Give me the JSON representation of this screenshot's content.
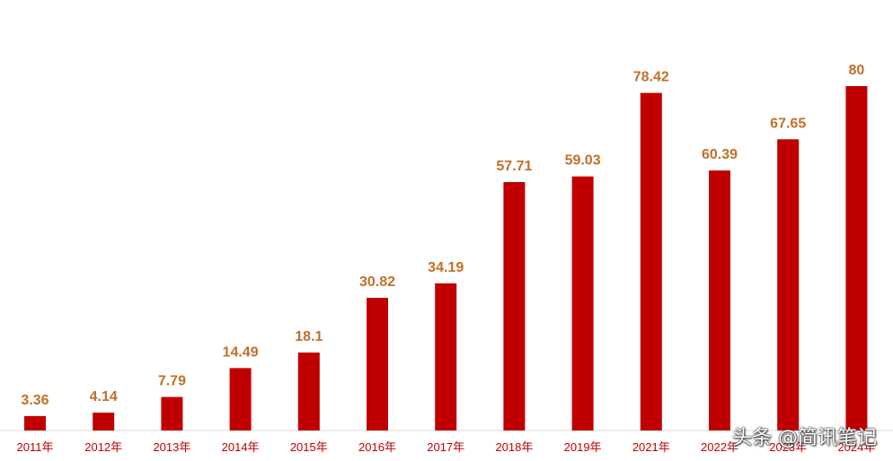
{
  "chart_data": {
    "type": "bar",
    "categories": [
      "2011年",
      "2012年",
      "2013年",
      "2014年",
      "2015年",
      "2016年",
      "2017年",
      "2018年",
      "2019年",
      "2021年",
      "2022年",
      "2023年",
      "2024年"
    ],
    "values": [
      3.36,
      4.14,
      7.79,
      14.49,
      18.1,
      30.82,
      34.19,
      57.71,
      59.03,
      78.42,
      60.39,
      67.65,
      80
    ],
    "value_labels": [
      "3.36",
      "4.14",
      "7.79",
      "14.49",
      "18.1",
      "30.82",
      "34.19",
      "57.71",
      "59.03",
      "78.42",
      "60.39",
      "67.65",
      "80"
    ],
    "title": "",
    "xlabel": "",
    "ylabel": "",
    "ylim": [
      0,
      80
    ],
    "grid": false,
    "legend": "none",
    "colors": {
      "bar": "#c00000",
      "value_label": "#c0702a",
      "tick_label": "#c00000",
      "axis": "#d9d9d9"
    }
  },
  "watermark": "头条 @简讯笔记"
}
